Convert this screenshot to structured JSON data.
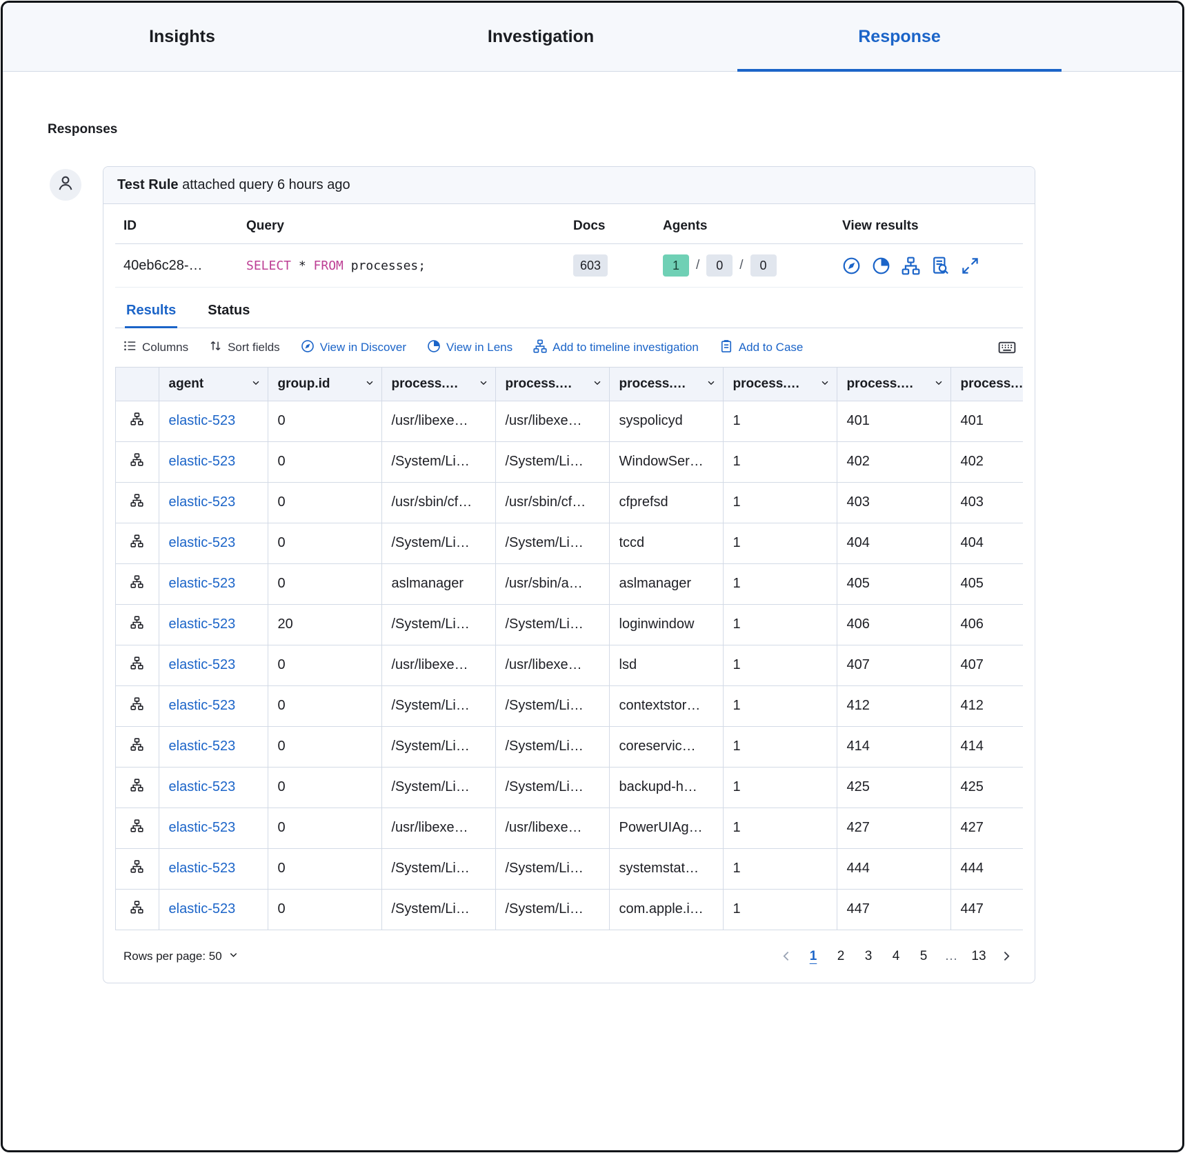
{
  "colors": {
    "accent_blue": "#1b64c8",
    "keyword_pink": "#bd3f94",
    "teal_badge": "#6fd0b5",
    "gray_badge": "#e1e6ee",
    "border": "#d3dae6"
  },
  "nav_tabs": [
    {
      "label": "Insights",
      "active": false
    },
    {
      "label": "Investigation",
      "active": false
    },
    {
      "label": "Response",
      "active": true
    }
  ],
  "section": {
    "title": "Responses"
  },
  "response_card": {
    "header": {
      "rule_name": "Test Rule",
      "suffix": " attached query 6 hours ago"
    },
    "meta": {
      "labels": {
        "id": "ID",
        "query": "Query",
        "docs": "Docs",
        "agents": "Agents",
        "view_results": "View results"
      },
      "id_value": "40eb6c28-…",
      "query": {
        "select": "SELECT ",
        "star": "* ",
        "from": "FROM ",
        "rest": "processes;"
      },
      "docs_count": "603",
      "agents": {
        "success": "1",
        "pending": "0",
        "failed": "0",
        "separator": "/"
      },
      "view_icons": [
        "discover-icon",
        "lens-icon",
        "timeline-icon",
        "inspect-icon",
        "expand-icon"
      ]
    },
    "result_tabs": [
      {
        "label": "Results",
        "active": true
      },
      {
        "label": "Status",
        "active": false
      }
    ],
    "toolbar": {
      "columns_label": "Columns",
      "sort_label": "Sort fields",
      "discover_label": "View in Discover",
      "lens_label": "View in Lens",
      "timeline_label": "Add to timeline investigation",
      "case_label": "Add to Case"
    },
    "grid": {
      "headers": [
        "agent",
        "group.id",
        "process.…",
        "process.…",
        "process.…",
        "process.…",
        "process.…",
        "process.…"
      ],
      "rows": [
        [
          "elastic-523",
          "0",
          "/usr/libexe…",
          "/usr/libexe…",
          "syspolicyd",
          "1",
          "401",
          "401"
        ],
        [
          "elastic-523",
          "0",
          "/System/Li…",
          "/System/Li…",
          "WindowSer…",
          "1",
          "402",
          "402"
        ],
        [
          "elastic-523",
          "0",
          "/usr/sbin/cf…",
          "/usr/sbin/cf…",
          "cfprefsd",
          "1",
          "403",
          "403"
        ],
        [
          "elastic-523",
          "0",
          "/System/Li…",
          "/System/Li…",
          "tccd",
          "1",
          "404",
          "404"
        ],
        [
          "elastic-523",
          "0",
          "aslmanager",
          "/usr/sbin/a…",
          "aslmanager",
          "1",
          "405",
          "405"
        ],
        [
          "elastic-523",
          "20",
          "/System/Li…",
          "/System/Li…",
          "loginwindow",
          "1",
          "406",
          "406"
        ],
        [
          "elastic-523",
          "0",
          "/usr/libexe…",
          "/usr/libexe…",
          "lsd",
          "1",
          "407",
          "407"
        ],
        [
          "elastic-523",
          "0",
          "/System/Li…",
          "/System/Li…",
          "contextstor…",
          "1",
          "412",
          "412"
        ],
        [
          "elastic-523",
          "0",
          "/System/Li…",
          "/System/Li…",
          "coreservic…",
          "1",
          "414",
          "414"
        ],
        [
          "elastic-523",
          "0",
          "/System/Li…",
          "/System/Li…",
          "backupd-h…",
          "1",
          "425",
          "425"
        ],
        [
          "elastic-523",
          "0",
          "/usr/libexe…",
          "/usr/libexe…",
          "PowerUIAg…",
          "1",
          "427",
          "427"
        ],
        [
          "elastic-523",
          "0",
          "/System/Li…",
          "/System/Li…",
          "systemstat…",
          "1",
          "444",
          "444"
        ],
        [
          "elastic-523",
          "0",
          "/System/Li…",
          "/System/Li…",
          "com.apple.i…",
          "1",
          "447",
          "447"
        ]
      ]
    },
    "footer": {
      "rows_per_page_label": "Rows per page: 50",
      "pages": [
        "1",
        "2",
        "3",
        "4",
        "5",
        "…",
        "13"
      ],
      "current_page": "1"
    }
  }
}
